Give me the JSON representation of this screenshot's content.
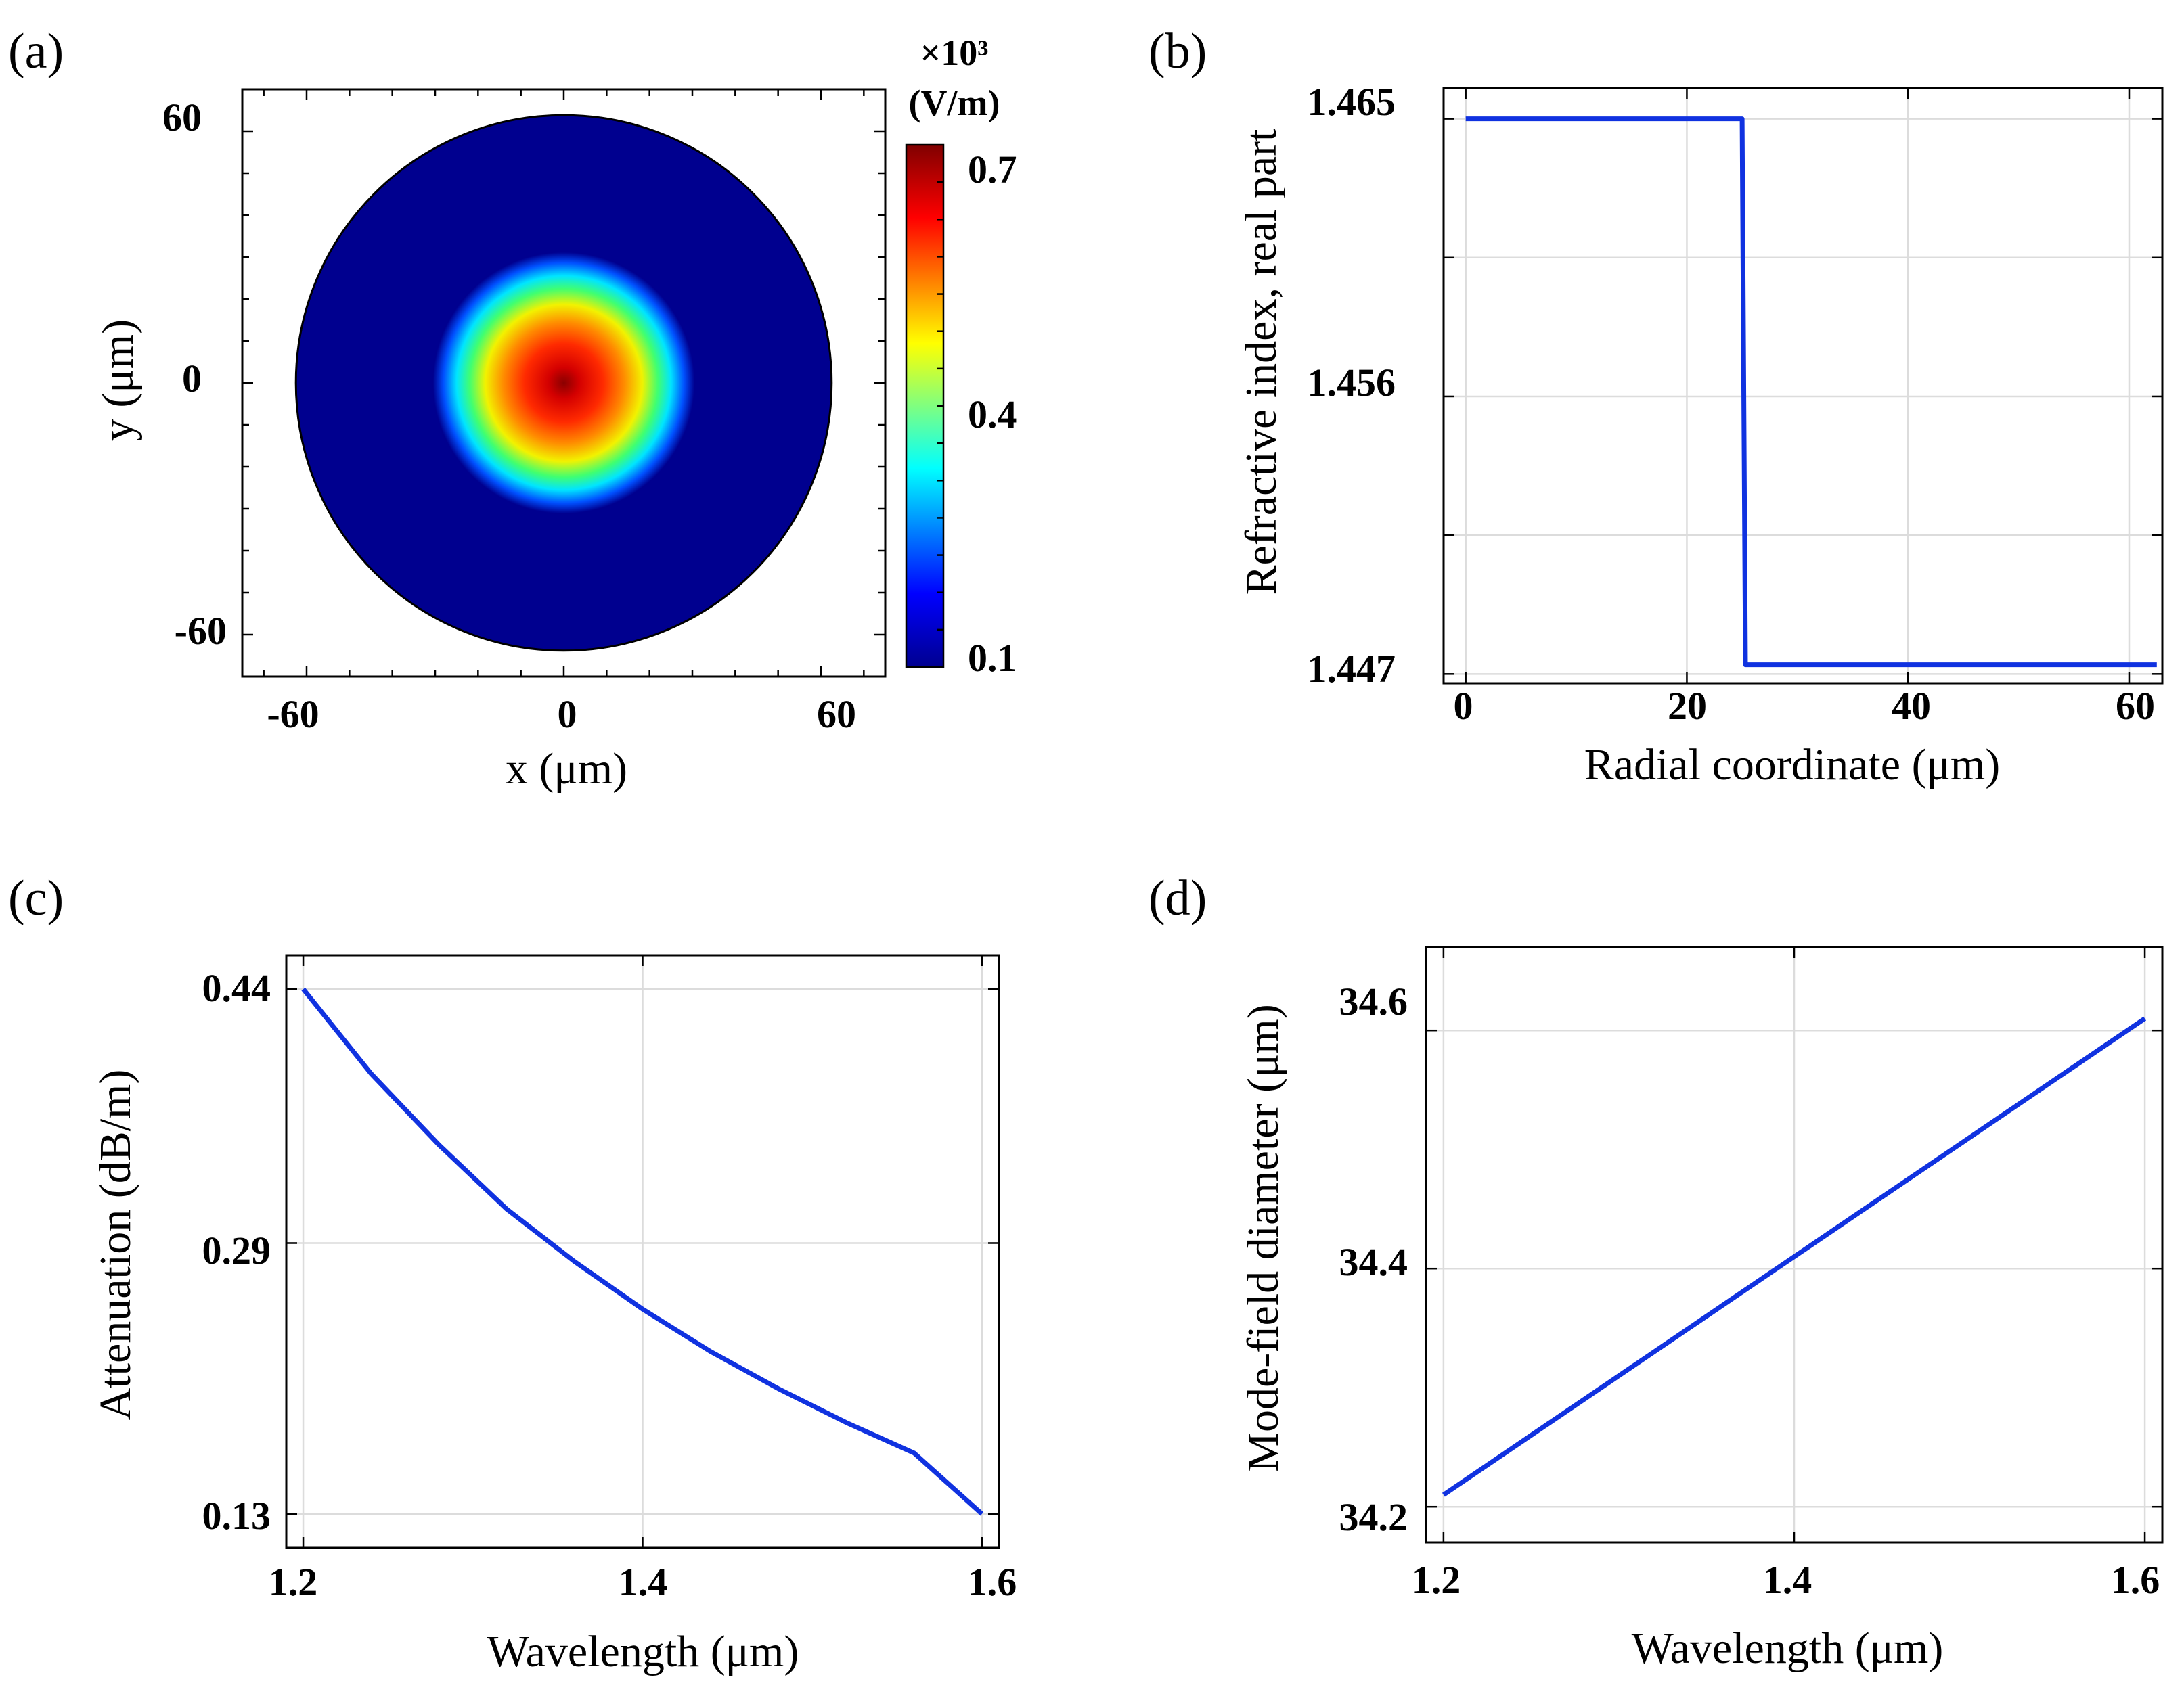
{
  "panels": {
    "a": {
      "label": "(a)",
      "chart_data": {
        "type": "heatmap",
        "title": "",
        "xlabel": "x (μm)",
        "ylabel": "y (μm)",
        "xlim": [
          -75,
          75
        ],
        "ylim": [
          -70,
          70
        ],
        "xticks": [
          "-60",
          "0",
          "60"
        ],
        "xtick_values": [
          -60,
          0,
          60
        ],
        "yticks": [
          "60",
          "0",
          "-60"
        ],
        "ytick_values": [
          60,
          0,
          -60
        ],
        "domain_radius": 62.5,
        "core_radius": 25,
        "peak": 0.75,
        "background": 0.05,
        "colorbar": {
          "multiplier": "×10³",
          "unit": "(V/m)",
          "ticks": [
            "0.7",
            "0.4",
            "0.1"
          ],
          "tick_values": [
            0.7,
            0.4,
            0.1
          ],
          "range": [
            0.05,
            0.75
          ]
        },
        "colormap": [
          "#00008f",
          "#0000ff",
          "#00ffff",
          "#ffff00",
          "#ff0000",
          "#800000"
        ]
      }
    },
    "b": {
      "label": "(b)",
      "chart_data": {
        "type": "line",
        "title": "",
        "xlabel": "Radial coordinate (μm)",
        "ylabel": "Refractive index, real part",
        "xlim": [
          -2,
          63
        ],
        "ylim": [
          1.4467,
          1.466
        ],
        "xticks": [
          "0",
          "20",
          "40",
          "60"
        ],
        "xtick_values": [
          0,
          20,
          40,
          60
        ],
        "yticks": [
          "1.465",
          "1.456",
          "1.447"
        ],
        "ytick_values": [
          1.465,
          1.456,
          1.447
        ],
        "minor_y": [
          1.4605,
          1.4515
        ],
        "series": [
          {
            "x": [
              0,
              25.0,
              25.3,
              62.5
            ],
            "y": [
              1.465,
              1.465,
              1.4473,
              1.4473
            ],
            "color": "#1032e0"
          }
        ]
      }
    },
    "c": {
      "label": "(c)",
      "chart_data": {
        "type": "line",
        "title": "",
        "xlabel": "Wavelength (μm)",
        "ylabel": "Attenuation (dB/m)",
        "xlim": [
          1.19,
          1.61
        ],
        "ylim": [
          0.11,
          0.46
        ],
        "xticks": [
          "1.2",
          "1.4",
          "1.6"
        ],
        "xtick_values": [
          1.2,
          1.4,
          1.6
        ],
        "yticks": [
          "0.44",
          "0.29",
          "0.13"
        ],
        "ytick_values": [
          0.44,
          0.29,
          0.13
        ],
        "series": [
          {
            "x": [
              1.2,
              1.24,
              1.28,
              1.32,
              1.36,
              1.4,
              1.44,
              1.48,
              1.52,
              1.56,
              1.6
            ],
            "y": [
              0.44,
              0.39,
              0.348,
              0.31,
              0.279,
              0.251,
              0.226,
              0.204,
              0.184,
              0.166,
              0.13
            ],
            "color": "#1032e0"
          }
        ]
      }
    },
    "d": {
      "label": "(d)",
      "chart_data": {
        "type": "line",
        "title": "",
        "xlabel": "Wavelength (μm)",
        "ylabel": "Mode-field diameter (μm)",
        "xlim": [
          1.19,
          1.61
        ],
        "ylim": [
          34.17,
          34.67
        ],
        "xticks": [
          "1.2",
          "1.4",
          "1.6"
        ],
        "xtick_values": [
          1.2,
          1.4,
          1.6
        ],
        "yticks": [
          "34.6",
          "34.4",
          "34.2"
        ],
        "ytick_values": [
          34.6,
          34.4,
          34.2
        ],
        "series": [
          {
            "x": [
              1.2,
              1.6
            ],
            "y": [
              34.21,
              34.61
            ],
            "color": "#1032e0"
          }
        ]
      }
    }
  }
}
